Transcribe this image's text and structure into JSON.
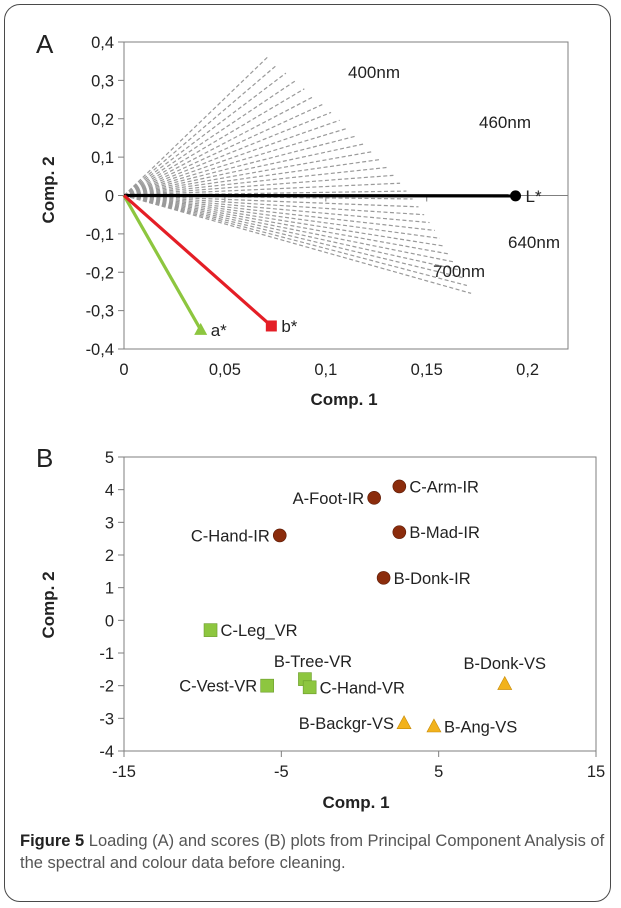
{
  "colors": {
    "wavelength_line": "#9a9a9a",
    "L_line": "#000000",
    "a_line": "#8dc63f",
    "b_line": "#e41e26",
    "ir_marker": "#8b2c0c",
    "vr_marker": "#8dc63f",
    "vs_marker": "#f2b21c"
  },
  "chart_data": [
    {
      "type": "line",
      "panel_label": "A",
      "xlabel": "Comp. 1",
      "ylabel": "Comp. 2",
      "xlim": [
        0,
        0.22
      ],
      "ylim": [
        -0.4,
        0.4
      ],
      "x_ticks": [
        0,
        0.05,
        0.1,
        0.15,
        0.2
      ],
      "x_tick_labels": [
        "0",
        "0,05",
        "0,1",
        "0,15",
        "0,2"
      ],
      "y_ticks": [
        0.4,
        0.3,
        0.2,
        0.1,
        0,
        -0.1,
        -0.2,
        -0.3,
        -0.4
      ],
      "y_tick_labels": [
        "0,4",
        "0,3",
        "0,2",
        "0,1",
        "0",
        "-0,1",
        "-0,2",
        "-0,3",
        "-0,4"
      ],
      "wavelength_loadings": {
        "line_style": "dashed",
        "count": 31,
        "start": {
          "x": 0.071,
          "y": 0.36
        },
        "end": {
          "x": 0.172,
          "y": -0.255
        }
      },
      "series": [
        {
          "name": "L*",
          "marker": "circle",
          "x": [
            0,
            0.194
          ],
          "y": [
            0,
            -0.001
          ]
        },
        {
          "name": "a*",
          "marker": "triangle",
          "x": [
            0,
            0.038
          ],
          "y": [
            0,
            -0.35
          ]
        },
        {
          "name": "b*",
          "marker": "square",
          "x": [
            0,
            0.073
          ],
          "y": [
            0,
            -0.34
          ]
        }
      ],
      "annotations": [
        "400nm",
        "460nm",
        "640nm",
        "700nm"
      ]
    },
    {
      "type": "scatter",
      "panel_label": "B",
      "xlabel": "Comp. 1",
      "ylabel": "Comp. 2",
      "xlim": [
        -15,
        15
      ],
      "ylim": [
        -4,
        5
      ],
      "x_ticks": [
        -15,
        -5,
        5,
        15
      ],
      "x_tick_labels": [
        "-15",
        "-5",
        "5",
        "15"
      ],
      "y_ticks": [
        5,
        4,
        3,
        2,
        1,
        0,
        -1,
        -2,
        -3,
        -4
      ],
      "y_tick_labels": [
        "5",
        "4",
        "3",
        "2",
        "1",
        "0",
        "-1",
        "-2",
        "-3",
        "-4"
      ],
      "points": [
        {
          "label": "C-Arm-IR",
          "group": "IR",
          "x": 2.5,
          "y": 4.1
        },
        {
          "label": "A-Foot-IR",
          "group": "IR",
          "x": 0.9,
          "y": 3.75
        },
        {
          "label": "B-Mad-IR",
          "group": "IR",
          "x": 2.5,
          "y": 2.7
        },
        {
          "label": "C-Hand-IR",
          "group": "IR",
          "x": -5.1,
          "y": 2.6
        },
        {
          "label": "B-Donk-IR",
          "group": "IR",
          "x": 1.5,
          "y": 1.3
        },
        {
          "label": "C-Leg_VR",
          "group": "VR",
          "x": -9.5,
          "y": -0.3
        },
        {
          "label": "B-Tree-VR",
          "group": "VR",
          "x": -3.5,
          "y": -1.8
        },
        {
          "label": "C-Vest-VR",
          "group": "VR",
          "x": -5.9,
          "y": -2.0
        },
        {
          "label": "C-Hand-VR",
          "group": "VR",
          "x": -3.2,
          "y": -2.05
        },
        {
          "label": "B-Donk-VS",
          "group": "VS",
          "x": 9.2,
          "y": -1.95
        },
        {
          "label": "B-Backgr-VS",
          "group": "VS",
          "x": 2.8,
          "y": -3.15
        },
        {
          "label": "B-Ang-VS",
          "group": "VS",
          "x": 4.7,
          "y": -3.25
        }
      ]
    }
  ],
  "caption": {
    "bold": "Figure 5",
    "text": " Loading (A) and scores (B) plots from Principal Component Analysis of the spectral and colour data before cleaning."
  }
}
